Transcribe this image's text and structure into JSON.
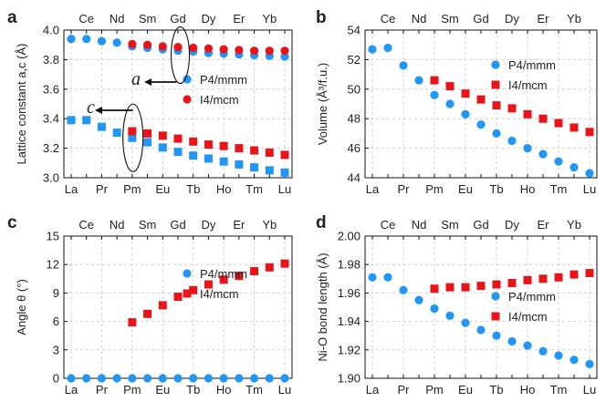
{
  "chart_data": [
    {
      "id": "a",
      "panel_label": "a",
      "type": "scatter",
      "ylabel": "Lattice constant a,c (Å)",
      "ylim": [
        3.0,
        4.0
      ],
      "yticks": [
        "3.0",
        "3.2",
        "3.4",
        "3.6",
        "3.8",
        "4.0"
      ],
      "yvals": [
        3.0,
        3.2,
        3.4,
        3.6,
        3.8,
        4.0
      ],
      "legend_position": "right-middle",
      "series": [
        {
          "name": "P4/mmm",
          "marker": "circle",
          "color": "#2196f3",
          "values": [
            3.94,
            3.94,
            3.925,
            3.915,
            3.89,
            3.88,
            3.87,
            3.86,
            3.855,
            3.845,
            3.84,
            3.835,
            3.83,
            3.825,
            3.82
          ]
        },
        {
          "name": "P4/mmm",
          "marker": "square",
          "color": "#2196f3",
          "legend": false,
          "values": [
            3.39,
            3.39,
            3.345,
            3.305,
            3.27,
            3.24,
            3.205,
            3.175,
            3.15,
            3.13,
            3.11,
            3.09,
            3.07,
            3.05,
            3.035
          ]
        },
        {
          "name": "I4/mcm",
          "marker": "circle",
          "color": "#e8141a",
          "start_index": 4,
          "values": [
            3.905,
            3.9,
            3.89,
            3.885,
            3.88,
            3.875,
            3.87,
            3.865,
            3.86,
            3.86,
            3.86
          ]
        },
        {
          "name": "I4/mcm",
          "marker": "square",
          "color": "#e8141a",
          "start_index": 4,
          "legend": false,
          "values": [
            3.315,
            3.3,
            3.285,
            3.265,
            3.245,
            3.225,
            3.215,
            3.2,
            3.185,
            3.17,
            3.155
          ]
        }
      ],
      "annotations": [
        "a",
        "c"
      ]
    },
    {
      "id": "b",
      "panel_label": "b",
      "type": "scatter",
      "ylabel": "Volume (Å³/f.u.)",
      "ylim": [
        44,
        54
      ],
      "yticks": [
        "44",
        "46",
        "48",
        "50",
        "52",
        "54"
      ],
      "yvals": [
        44,
        46,
        48,
        50,
        52,
        54
      ],
      "legend_position": "top-right",
      "series": [
        {
          "name": "P4/mmm",
          "marker": "circle",
          "color": "#2196f3",
          "values": [
            52.7,
            52.8,
            51.6,
            50.6,
            49.6,
            49.0,
            48.3,
            47.6,
            47.0,
            46.5,
            46.0,
            45.6,
            45.1,
            44.7,
            44.3
          ]
        },
        {
          "name": "I4/mcm",
          "marker": "square",
          "color": "#e8141a",
          "start_index": 4,
          "values": [
            50.6,
            50.2,
            49.7,
            49.3,
            48.9,
            48.7,
            48.3,
            48.0,
            47.7,
            47.4,
            47.1
          ]
        }
      ]
    },
    {
      "id": "c",
      "panel_label": "c",
      "type": "scatter",
      "ylabel": "Angle θ (°)",
      "ylim": [
        0,
        15
      ],
      "yticks": [
        "0",
        "3",
        "6",
        "9",
        "12",
        "15"
      ],
      "yvals": [
        0,
        3,
        6,
        9,
        12,
        15
      ],
      "legend_position": "right-middle",
      "series": [
        {
          "name": "P4/mmm",
          "marker": "circle",
          "color": "#2196f3",
          "values": [
            0,
            0,
            0,
            0,
            0,
            0,
            0,
            0,
            0,
            0,
            0,
            0,
            0,
            0,
            0
          ]
        },
        {
          "name": "I4/mcm",
          "marker": "square",
          "color": "#e8141a",
          "start_index": 4,
          "values": [
            5.9,
            6.8,
            7.7,
            8.6,
            9.3,
            9.9,
            10.4,
            10.8,
            11.3,
            11.7,
            12.1
          ]
        }
      ]
    },
    {
      "id": "d",
      "panel_label": "d",
      "type": "scatter",
      "ylabel": "Ni-O bond length (Å)",
      "ylim": [
        1.9,
        2.0
      ],
      "yticks": [
        "1.90",
        "1.92",
        "1.94",
        "1.96",
        "1.98",
        "2.00"
      ],
      "yvals": [
        1.9,
        1.92,
        1.94,
        1.96,
        1.98,
        2.0
      ],
      "legend_position": "right-middle",
      "series": [
        {
          "name": "P4/mmm",
          "marker": "circle",
          "color": "#2196f3",
          "values": [
            1.971,
            1.971,
            1.962,
            1.955,
            1.949,
            1.944,
            1.939,
            1.934,
            1.93,
            1.926,
            1.923,
            1.919,
            1.916,
            1.913,
            1.91
          ]
        },
        {
          "name": "I4/mcm",
          "marker": "square",
          "color": "#e8141a",
          "start_index": 4,
          "values": [
            1.963,
            1.964,
            1.964,
            1.965,
            1.966,
            1.967,
            1.969,
            1.97,
            1.971,
            1.973,
            1.974
          ]
        }
      ]
    }
  ],
  "elements_bottom": [
    "La",
    "Pr",
    "Pm",
    "Eu",
    "Tb",
    "Ho",
    "Tm",
    "Lu"
  ],
  "elements_top": [
    "Ce",
    "Nd",
    "Sm",
    "Gd",
    "Dy",
    "Er",
    "Yb"
  ]
}
